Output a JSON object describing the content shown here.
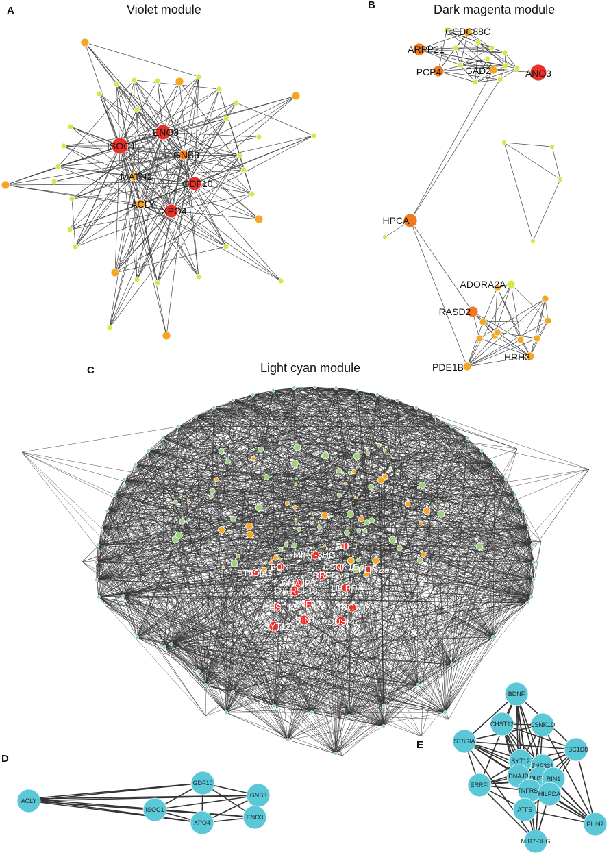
{
  "panels": {
    "A": {
      "letter": "A",
      "title": "Violet module",
      "genes": [
        "ENO3",
        "ISOC1",
        "GNB3",
        "MATN2",
        "GDF10",
        "ACLY",
        "XPO4"
      ]
    },
    "B": {
      "letter": "B",
      "title": "Dark magenta module",
      "genes": [
        "CCDC88C",
        "ARPP21",
        "PCP4",
        "GAD2",
        "ANO3",
        "HPCA",
        "ADORA2A",
        "RASD2",
        "HRH3",
        "PDE1B"
      ]
    },
    "C": {
      "letter": "C",
      "title": "Light cyan module",
      "genes": [
        "ATF5",
        "MIR7-3HG",
        "BDNF",
        "CSNK1D",
        "PLIN2",
        "ST8SIA5",
        "ERRFI1",
        "DNAJB5",
        "HILPDA",
        "TNFRSF18",
        "CHST12",
        "ZNF331",
        "TBC1D8",
        "RIN1",
        "DUSP5",
        "SYT12"
      ]
    },
    "D": {
      "letter": "D",
      "title": "",
      "genes": [
        "ACLY",
        "ISOC1",
        "GDF10",
        "GNB3",
        "ENO3",
        "XPO4"
      ]
    },
    "E": {
      "letter": "E",
      "title": "",
      "genes": [
        "BDNF",
        "CHST12",
        "CSNK1D",
        "ST8SIA",
        "SYT12",
        "TBC1D8",
        "ZNF331",
        "DNAJB",
        "DUSP5",
        "RIN1",
        "ERRFI",
        "TNFRSF",
        "HILPDA",
        "ATF5",
        "PLIN2",
        "MIR7-3HG"
      ]
    }
  },
  "colors": {
    "hub_red": "#e8312a",
    "hub_orange": "#f07a1f",
    "mid_orange": "#f5a623",
    "leaf_yellow": "#d4e84a",
    "cyan": "#5bc8d8",
    "edge": "#333333"
  }
}
